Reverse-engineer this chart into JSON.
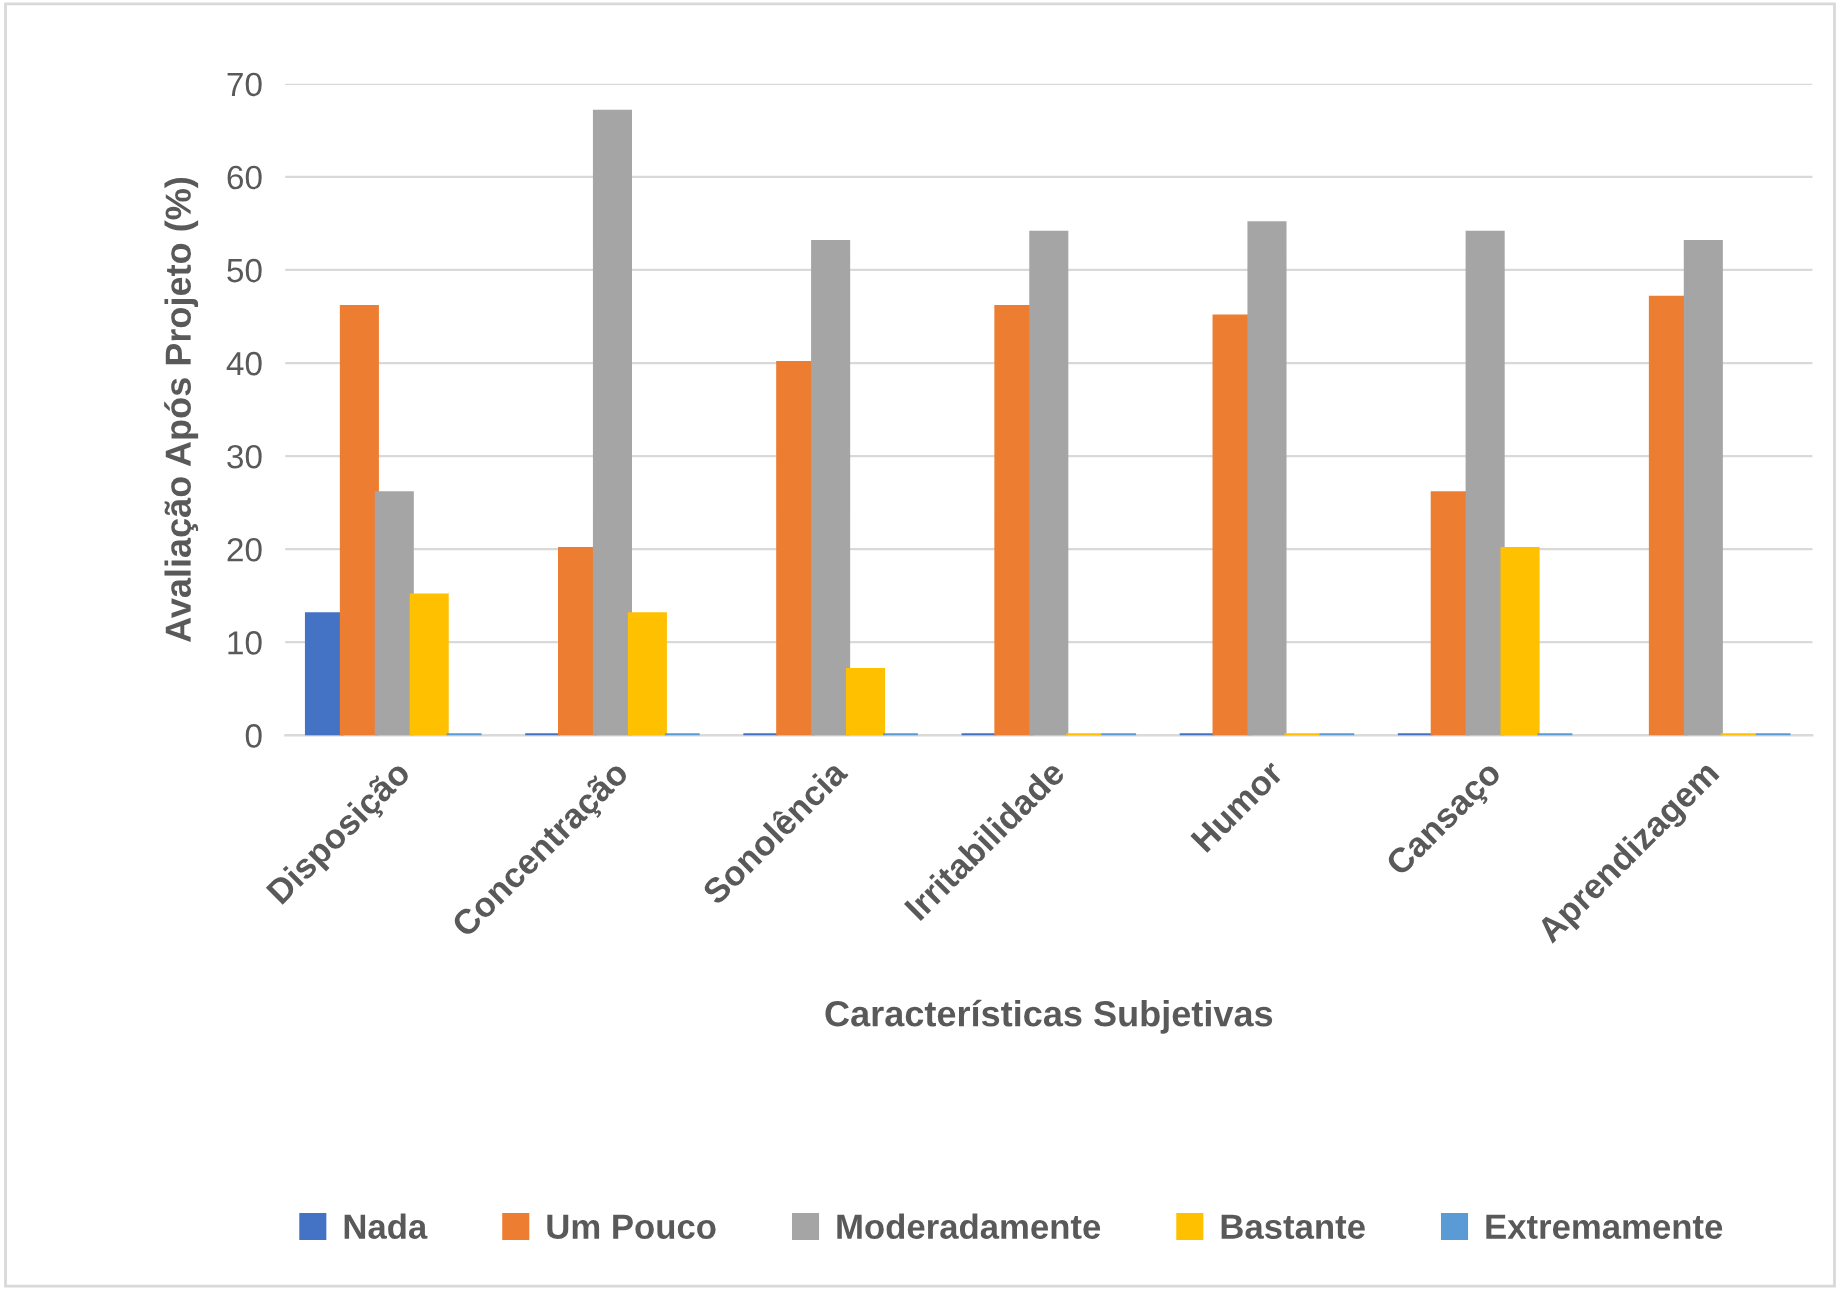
{
  "chart_data": {
    "type": "bar",
    "xlabel": "Características Subjetivas",
    "ylabel": "Avaliação Após Projeto (%)",
    "categories": [
      "Disposição",
      "Concentração",
      "Sonolência",
      "Irritabilidade",
      "Humor",
      "Cansaço",
      "Aprendizagem"
    ],
    "series": [
      {
        "name": "Nada",
        "color": "#4472c4",
        "values": [
          13,
          0,
          0,
          0,
          0,
          0,
          null
        ]
      },
      {
        "name": "Um Pouco",
        "color": "#ed7d31",
        "values": [
          46,
          20,
          40,
          46,
          45,
          26,
          47
        ]
      },
      {
        "name": "Moderadamente",
        "color": "#a5a5a5",
        "values": [
          26,
          67,
          53,
          54,
          55,
          54,
          53
        ]
      },
      {
        "name": "Bastante",
        "color": "#ffc000",
        "values": [
          15,
          13,
          7,
          0,
          0,
          20,
          0
        ]
      },
      {
        "name": "Extremamente",
        "color": "#5b9bd5",
        "values": [
          0,
          0,
          0,
          0,
          0,
          0,
          0
        ]
      }
    ],
    "ylim": [
      0,
      70
    ],
    "yticks": [
      0,
      10,
      20,
      30,
      40,
      50,
      60,
      70
    ],
    "grid": "y",
    "legend": "bottom"
  }
}
